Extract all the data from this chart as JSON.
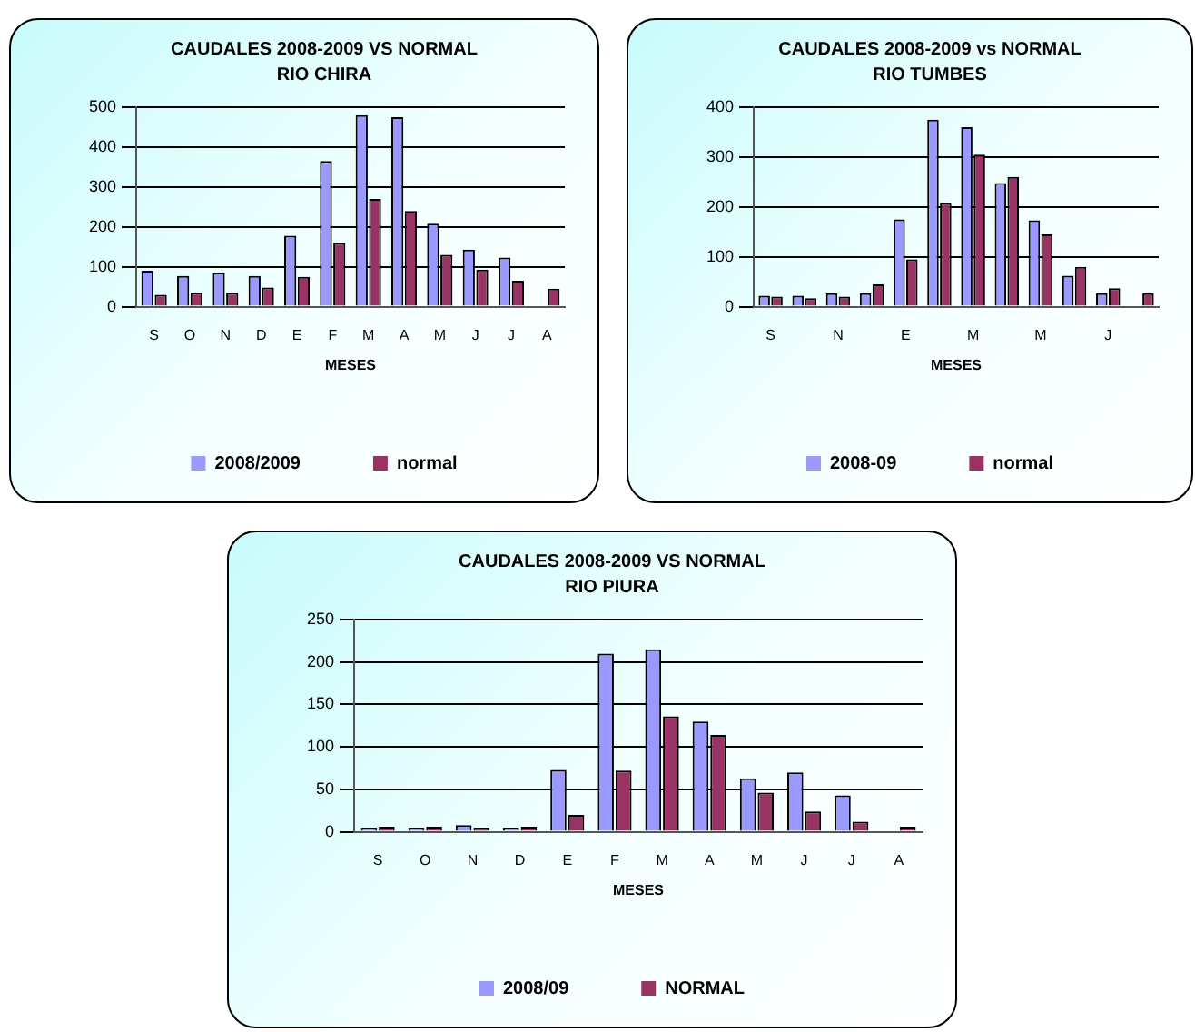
{
  "chart_data": [
    {
      "type": "bar",
      "title": "CAUDALES 2008-2009 VS NORMAL",
      "subtitle": "RIO CHIRA",
      "xlabel": "MESES",
      "categories": [
        "S",
        "O",
        "N",
        "D",
        "E",
        "F",
        "M",
        "A",
        "M",
        "J",
        "J",
        "A"
      ],
      "series": [
        {
          "name": "2008/2009",
          "color": "#9999ff",
          "values": [
            90,
            77,
            85,
            77,
            178,
            365,
            480,
            475,
            208,
            143,
            123,
            null
          ]
        },
        {
          "name": "normal",
          "color": "#993366",
          "values": [
            30,
            35,
            35,
            48,
            75,
            160,
            270,
            240,
            130,
            93,
            65,
            45
          ]
        }
      ],
      "ylim": [
        0,
        500
      ],
      "yticks": [
        0,
        100,
        200,
        300,
        400,
        500
      ],
      "grid": "y",
      "legend": "bottom"
    },
    {
      "type": "bar",
      "title": "CAUDALES 2008-2009 vs NORMAL",
      "subtitle": "RIO TUMBES",
      "xlabel": "MESES",
      "categories": [
        "S",
        null,
        "N",
        null,
        "E",
        null,
        "M",
        null,
        "M",
        null,
        "J",
        null
      ],
      "series": [
        {
          "name": "2008-09",
          "color": "#9999ff",
          "values": [
            22,
            22,
            27,
            27,
            175,
            375,
            360,
            248,
            173,
            62,
            27,
            null
          ]
        },
        {
          "name": "normal",
          "color": "#993366",
          "values": [
            20,
            17,
            20,
            45,
            95,
            208,
            305,
            260,
            145,
            80,
            37,
            27
          ]
        }
      ],
      "ylim": [
        0,
        400
      ],
      "yticks": [
        0,
        100,
        200,
        300,
        400
      ],
      "grid": "y",
      "legend": "bottom"
    },
    {
      "type": "bar",
      "title": "CAUDALES 2008-2009 VS NORMAL",
      "subtitle": "RIO PIURA",
      "xlabel": "MESES",
      "categories": [
        "S",
        "O",
        "N",
        "D",
        "E",
        "F",
        "M",
        "A",
        "M",
        "J",
        "J",
        "A"
      ],
      "series": [
        {
          "name": "2008/09",
          "color": "#9999ff",
          "values": [
            5,
            5,
            8,
            5,
            73,
            210,
            215,
            130,
            63,
            70,
            43,
            null
          ]
        },
        {
          "name": "NORMAL",
          "color": "#993366",
          "values": [
            6,
            6,
            5,
            6,
            20,
            72,
            136,
            114,
            46,
            24,
            12,
            6
          ]
        }
      ],
      "ylim": [
        0,
        250
      ],
      "yticks": [
        0,
        50,
        100,
        150,
        200,
        250
      ],
      "grid": "y",
      "legend": "bottom"
    }
  ]
}
